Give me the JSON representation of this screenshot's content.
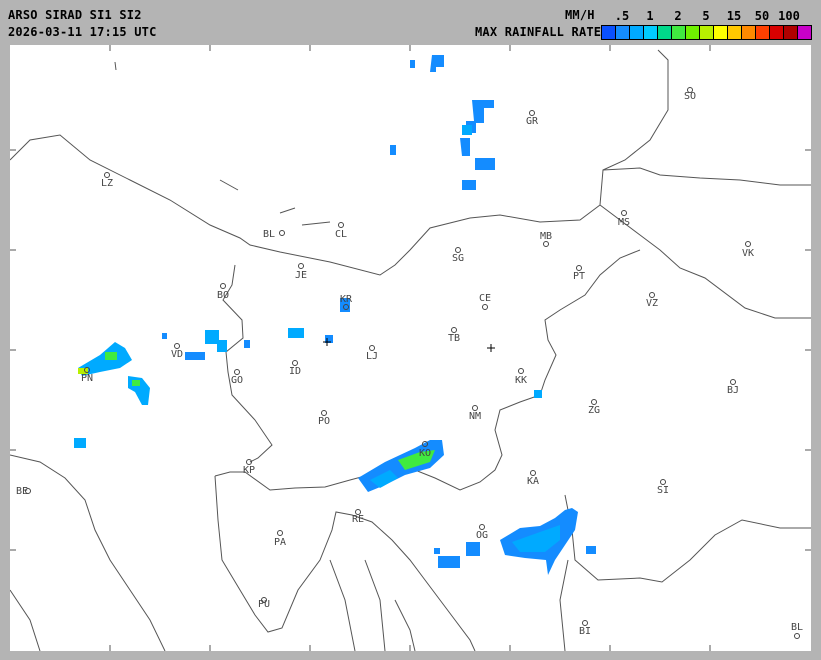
{
  "header": {
    "title": "ARSO SIRAD SI1 SI2",
    "timestamp": "2026-03-11 17:15 UTC",
    "unit": "MM/H",
    "legend_title": "MAX RAINFALL RATE"
  },
  "legend": {
    "ticks": [
      ".5",
      "1",
      "2",
      "5",
      "15",
      "50",
      "100"
    ],
    "colors": [
      "#0a50ff",
      "#148cff",
      "#00aaff",
      "#00ccff",
      "#00d88a",
      "#40ea40",
      "#6ef000",
      "#b8f000",
      "#ffff00",
      "#ffc800",
      "#ff8a00",
      "#ff4000",
      "#d80000",
      "#b00000",
      "#c800c8"
    ]
  },
  "places": [
    {
      "code": "SO"
    },
    {
      "code": "GR"
    },
    {
      "code": "LZ"
    },
    {
      "code": "BL"
    },
    {
      "code": "CL"
    },
    {
      "code": "MS"
    },
    {
      "code": "MB"
    },
    {
      "code": "VK"
    },
    {
      "code": "SG"
    },
    {
      "code": "JE"
    },
    {
      "code": "PT"
    },
    {
      "code": "BO"
    },
    {
      "code": "CE"
    },
    {
      "code": "KR"
    },
    {
      "code": "VZ"
    },
    {
      "code": "TB"
    },
    {
      "code": "VD"
    },
    {
      "code": "LJ"
    },
    {
      "code": "PN"
    },
    {
      "code": "ID"
    },
    {
      "code": "GO"
    },
    {
      "code": "KK"
    },
    {
      "code": "BJ"
    },
    {
      "code": "ZG"
    },
    {
      "code": "NM"
    },
    {
      "code": "PO"
    },
    {
      "code": "KO"
    },
    {
      "code": "KP"
    },
    {
      "code": "BE"
    },
    {
      "code": "KA"
    },
    {
      "code": "SI"
    },
    {
      "code": "RE"
    },
    {
      "code": "OG"
    },
    {
      "code": "PA"
    },
    {
      "code": "PU"
    },
    {
      "code": "BI"
    },
    {
      "code": "BL"
    }
  ]
}
